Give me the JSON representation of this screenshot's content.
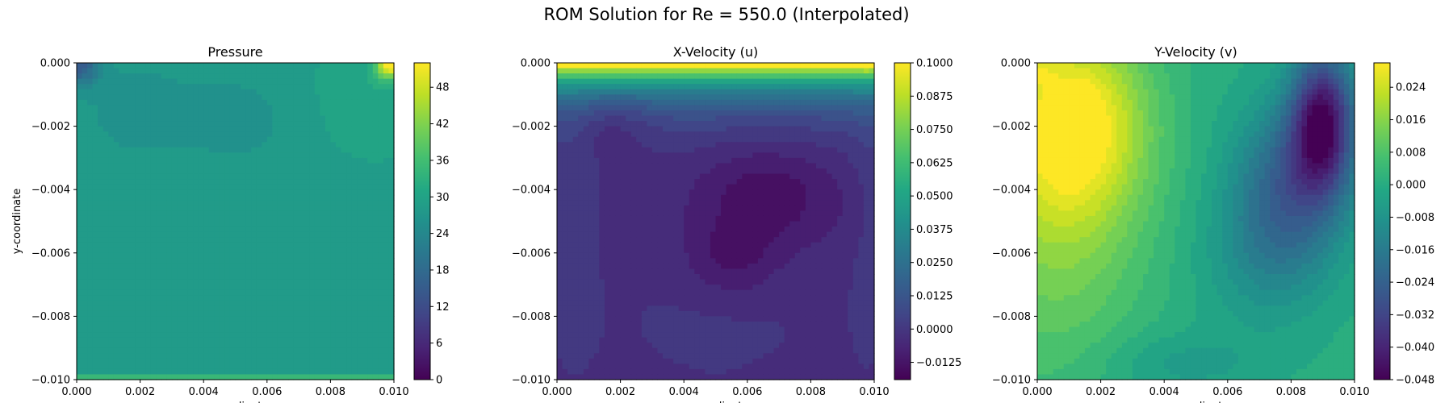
{
  "figure": {
    "title": "ROM Solution for Re = 550.0 (Interpolated)"
  },
  "chart_data": [
    {
      "type": "heatmap",
      "title": "Pressure",
      "xlabel": "x-coordinate",
      "ylabel": "y-coordinate",
      "xlim": [
        0.0,
        0.01
      ],
      "ylim": [
        -0.01,
        0.0
      ],
      "x_ticks": [
        "0.000",
        "0.002",
        "0.004",
        "0.006",
        "0.008",
        "0.010"
      ],
      "y_ticks": [
        "0.000",
        "−0.002",
        "−0.004",
        "−0.006",
        "−0.008",
        "−0.010"
      ],
      "colorbar": {
        "colormap": "viridis",
        "range": [
          0,
          52
        ],
        "ticks": [
          0,
          6,
          12,
          18,
          24,
          30,
          36,
          42,
          48
        ],
        "tick_labels": [
          "0",
          "6",
          "12",
          "18",
          "24",
          "30",
          "36",
          "42",
          "48"
        ]
      },
      "field_summary": {
        "background_value": 28,
        "features": [
          {
            "x": 0.001,
            "y": -0.0015,
            "value": 26,
            "desc": "low-pressure lobe near top-left"
          },
          {
            "x": 0.0052,
            "y": -0.0018,
            "value": 26,
            "desc": "low-pressure lobe near top-center"
          },
          {
            "x": 0.0096,
            "y": -0.0003,
            "value": 50,
            "desc": "high-pressure peak at top-right corner"
          },
          {
            "x": 0.0003,
            "y": -0.0003,
            "value": 14,
            "desc": "low-pressure spot at top-left corner"
          }
        ]
      }
    },
    {
      "type": "heatmap",
      "title": "X-Velocity (u)",
      "xlabel": "x-coordinate",
      "xlim": [
        0.0,
        0.01
      ],
      "ylim": [
        -0.01,
        0.0
      ],
      "x_ticks": [
        "0.000",
        "0.002",
        "0.004",
        "0.006",
        "0.008",
        "0.010"
      ],
      "y_ticks": [
        "0.000",
        "−0.002",
        "−0.004",
        "−0.006",
        "−0.008",
        "−0.010"
      ],
      "colorbar": {
        "colormap": "viridis",
        "range": [
          -0.019,
          0.1
        ],
        "ticks": [
          0.1,
          0.0875,
          0.075,
          0.0625,
          0.05,
          0.0375,
          0.025,
          0.0125,
          0.0,
          -0.0125
        ],
        "tick_labels": [
          "0.1000",
          "0.0875",
          "0.0750",
          "0.0625",
          "0.0500",
          "0.0375",
          "0.0250",
          "0.0125",
          "0.0000",
          "−0.0125"
        ]
      },
      "field_summary": {
        "lid_value": 0.1,
        "features": [
          {
            "x": 0.0065,
            "y": -0.004,
            "value": -0.016,
            "desc": "main recirculation minimum"
          },
          {
            "x": 0.0055,
            "y": -0.0062,
            "value": -0.016,
            "desc": "secondary minimum"
          },
          {
            "x": 0.0015,
            "y": -0.0018,
            "value": -0.012,
            "desc": "upper-left minimum"
          }
        ]
      }
    },
    {
      "type": "heatmap",
      "title": "Y-Velocity (v)",
      "xlabel": "x-coordinate",
      "xlim": [
        0.0,
        0.01
      ],
      "ylim": [
        -0.01,
        0.0
      ],
      "x_ticks": [
        "0.000",
        "0.002",
        "0.004",
        "0.006",
        "0.008",
        "0.010"
      ],
      "y_ticks": [
        "0.000",
        "−0.002",
        "−0.004",
        "−0.006",
        "−0.008",
        "−0.010"
      ],
      "colorbar": {
        "colormap": "viridis",
        "range": [
          -0.048,
          0.03
        ],
        "ticks": [
          0.024,
          0.016,
          0.008,
          0.0,
          -0.008,
          -0.016,
          -0.024,
          -0.032,
          -0.04,
          -0.048
        ],
        "tick_labels": [
          "0.024",
          "0.016",
          "0.008",
          "0.000",
          "−0.008",
          "−0.016",
          "−0.024",
          "−0.032",
          "−0.040",
          "−0.048"
        ]
      },
      "field_summary": {
        "background_value": 0.0,
        "features": [
          {
            "x": 0.0015,
            "y": -0.002,
            "value": 0.028,
            "desc": "downward-flow maximum on left"
          },
          {
            "x": 0.009,
            "y": -0.002,
            "value": -0.046,
            "desc": "upward-flow minimum on right"
          },
          {
            "x": 0.0075,
            "y": -0.006,
            "value": -0.018,
            "desc": "lower-right negative lobe"
          }
        ]
      }
    }
  ]
}
